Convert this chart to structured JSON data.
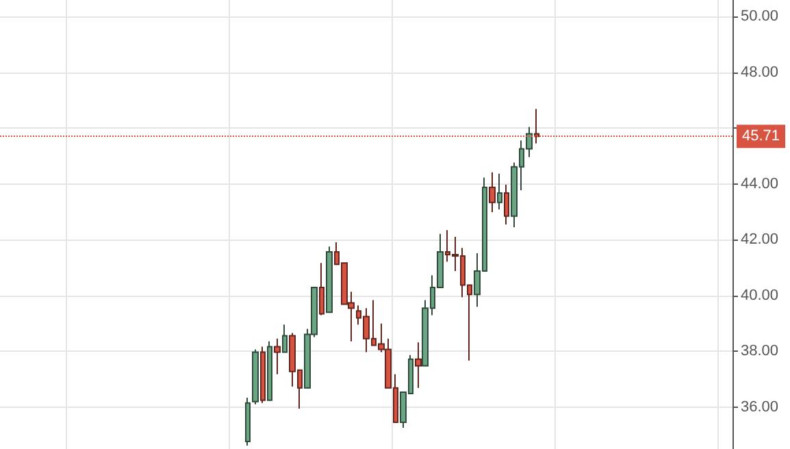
{
  "chart_data": {
    "type": "candlestick",
    "categories": [
      null,
      null,
      null,
      null,
      null,
      null,
      null,
      null,
      null,
      null,
      null,
      null,
      null,
      null,
      null,
      null,
      null,
      null,
      null,
      null,
      null,
      null,
      null,
      null,
      null,
      null,
      null,
      null,
      null,
      null,
      null,
      null,
      null,
      null,
      null,
      null,
      null,
      null,
      null,
      null,
      null,
      null,
      null,
      null,
      null,
      null,
      null,
      null,
      null,
      null,
      null,
      null,
      null,
      null,
      null,
      null,
      null,
      null,
      null,
      null,
      null,
      null,
      null,
      null,
      null,
      null,
      null,
      null,
      null,
      null,
      null,
      null,
      null,
      null,
      null,
      null,
      null,
      null,
      null,
      null,
      null,
      null,
      null,
      null,
      null,
      null,
      null,
      null,
      null,
      null,
      null,
      null,
      null,
      null,
      null,
      null,
      null,
      null,
      null
    ],
    "ohlc": [
      null,
      null,
      null,
      null,
      null,
      null,
      null,
      null,
      null,
      null,
      null,
      null,
      null,
      null,
      null,
      null,
      null,
      null,
      null,
      null,
      null,
      null,
      null,
      null,
      null,
      null,
      null,
      null,
      null,
      null,
      null,
      null,
      null,
      [
        34.77,
        36.34,
        34.62,
        36.15
      ],
      [
        36.2,
        38.07,
        36.1,
        37.97
      ],
      [
        37.97,
        38.17,
        36.15,
        36.25
      ],
      [
        36.25,
        38.36,
        36.25,
        38.17
      ],
      [
        38.17,
        38.46,
        37.18,
        37.97
      ],
      [
        37.97,
        38.96,
        37.97,
        38.56
      ],
      [
        38.56,
        38.66,
        36.74,
        37.28
      ],
      [
        37.33,
        37.33,
        35.95,
        36.69
      ],
      [
        36.69,
        38.81,
        36.69,
        38.61
      ],
      [
        38.61,
        40.29,
        38.51,
        40.29
      ],
      [
        40.29,
        41.17,
        39.3,
        39.35
      ],
      [
        39.4,
        41.76,
        39.4,
        41.57
      ],
      [
        41.57,
        41.91,
        41.12,
        41.12
      ],
      [
        41.17,
        41.17,
        39.69,
        39.69
      ],
      [
        39.74,
        40.14,
        38.36,
        39.55
      ],
      [
        39.45,
        39.65,
        38.96,
        39.2
      ],
      [
        39.25,
        39.55,
        37.97,
        38.46
      ],
      [
        38.46,
        39.84,
        38.22,
        38.22
      ],
      [
        38.27,
        39.0,
        37.97,
        38.07
      ],
      [
        38.07,
        38.46,
        36.69,
        36.69
      ],
      [
        36.69,
        37.18,
        35.46,
        35.46
      ],
      [
        35.46,
        36.54,
        35.26,
        36.54
      ],
      [
        36.49,
        37.87,
        36.49,
        37.72
      ],
      [
        37.72,
        38.32,
        36.69,
        37.48
      ],
      [
        37.48,
        39.84,
        37.48,
        39.55
      ],
      [
        39.55,
        40.73,
        39.3,
        40.29
      ],
      [
        40.29,
        42.21,
        40.29,
        41.57
      ],
      [
        41.57,
        42.35,
        41.22,
        41.47
      ],
      [
        41.47,
        42.11,
        40.88,
        41.42
      ],
      [
        41.42,
        41.71,
        39.94,
        40.38
      ],
      [
        40.38,
        40.38,
        37.67,
        40.04
      ],
      [
        40.04,
        41.52,
        39.6,
        40.88
      ],
      [
        40.88,
        44.23,
        40.88,
        43.88
      ],
      [
        43.88,
        44.42,
        42.99,
        43.34
      ],
      [
        43.34,
        44.37,
        43.09,
        43.68
      ],
      [
        43.68,
        43.98,
        42.55,
        42.85
      ],
      [
        42.85,
        44.77,
        42.45,
        44.62
      ],
      [
        44.62,
        45.56,
        43.78,
        45.26
      ],
      [
        45.26,
        46.05,
        44.97,
        45.8
      ],
      [
        45.8,
        46.69,
        45.46,
        45.71
      ],
      null,
      null,
      null,
      null,
      null,
      null,
      null,
      null,
      null,
      null,
      null,
      null,
      null,
      null,
      null,
      null,
      null,
      null,
      null,
      null,
      null,
      null,
      null,
      null,
      null,
      null
    ],
    "colors": [
      null,
      null,
      null,
      null,
      null,
      null,
      null,
      null,
      null,
      null,
      null,
      null,
      null,
      null,
      null,
      null,
      null,
      null,
      null,
      null,
      null,
      null,
      null,
      null,
      null,
      null,
      null,
      null,
      null,
      null,
      null,
      null,
      null,
      "#6ba583",
      "#6ba583",
      "#d75442",
      "#6ba583",
      "#d75442",
      "#6ba583",
      "#d75442",
      "#d75442",
      "#6ba583",
      "#6ba583",
      "#d75442",
      "#6ba583",
      "#d75442",
      "#d75442",
      "#d75442",
      "#d75442",
      "#d75442",
      "#d75442",
      "#d75442",
      "#d75442",
      "#d75442",
      "#6ba583",
      "#6ba583",
      "#d75442",
      "#6ba583",
      "#6ba583",
      "#6ba583",
      "#d75442",
      "#d75442",
      "#d75442",
      "#d75442",
      "#6ba583",
      "#6ba583",
      "#d75442",
      "#6ba583",
      "#d75442",
      "#6ba583",
      "#6ba583",
      "#6ba583",
      "#d75442",
      null,
      null,
      null,
      null,
      null,
      null,
      null,
      null,
      null,
      null,
      null,
      null,
      null,
      null,
      null,
      null,
      null,
      null,
      null,
      null,
      null,
      null,
      null,
      null,
      null,
      null
    ],
    "ylim": [
      34.5,
      50.6
    ],
    "yticks": [
      {
        "value": 36,
        "label": "36.00"
      },
      {
        "value": 38,
        "label": "38.00"
      },
      {
        "value": 40,
        "label": "40.00"
      },
      {
        "value": 42,
        "label": "42.00"
      },
      {
        "value": 44,
        "label": "44.00"
      },
      {
        "value": 46,
        "label": null
      },
      {
        "value": 48,
        "label": "48.00"
      },
      {
        "value": 50,
        "label": "50.00"
      }
    ],
    "grid": true,
    "ref_lines": [
      {
        "axis": "y",
        "value": 45.71,
        "label": "45.71",
        "color": "#d75442",
        "line_style": "dotted"
      }
    ]
  }
}
